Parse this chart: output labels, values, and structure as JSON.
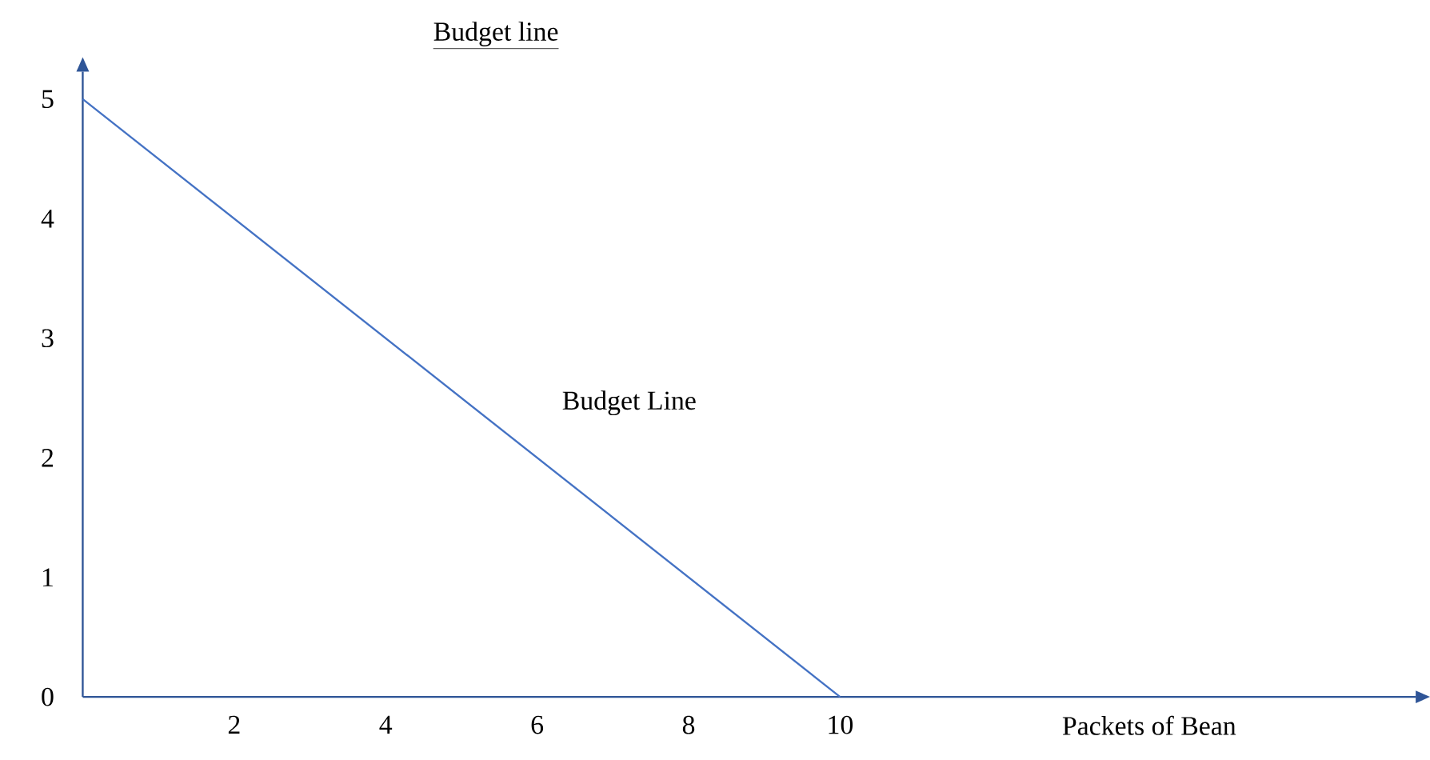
{
  "chart_data": {
    "type": "line",
    "title": "Budget line",
    "xlabel": "Packets of Bean",
    "x": [
      0,
      10
    ],
    "series": [
      {
        "color": "#4472c4",
        "values": [
          5,
          0
        ]
      }
    ],
    "xlim": [
      0,
      17.6
    ],
    "ylim": [
      0,
      5.23
    ],
    "xticks": [
      2,
      4,
      6,
      8,
      10
    ],
    "yticks": [
      0,
      1,
      2,
      3,
      4,
      5
    ],
    "annotations": [
      "Budget Line"
    ],
    "grid": false,
    "marker": "none",
    "line_style": "solid"
  }
}
